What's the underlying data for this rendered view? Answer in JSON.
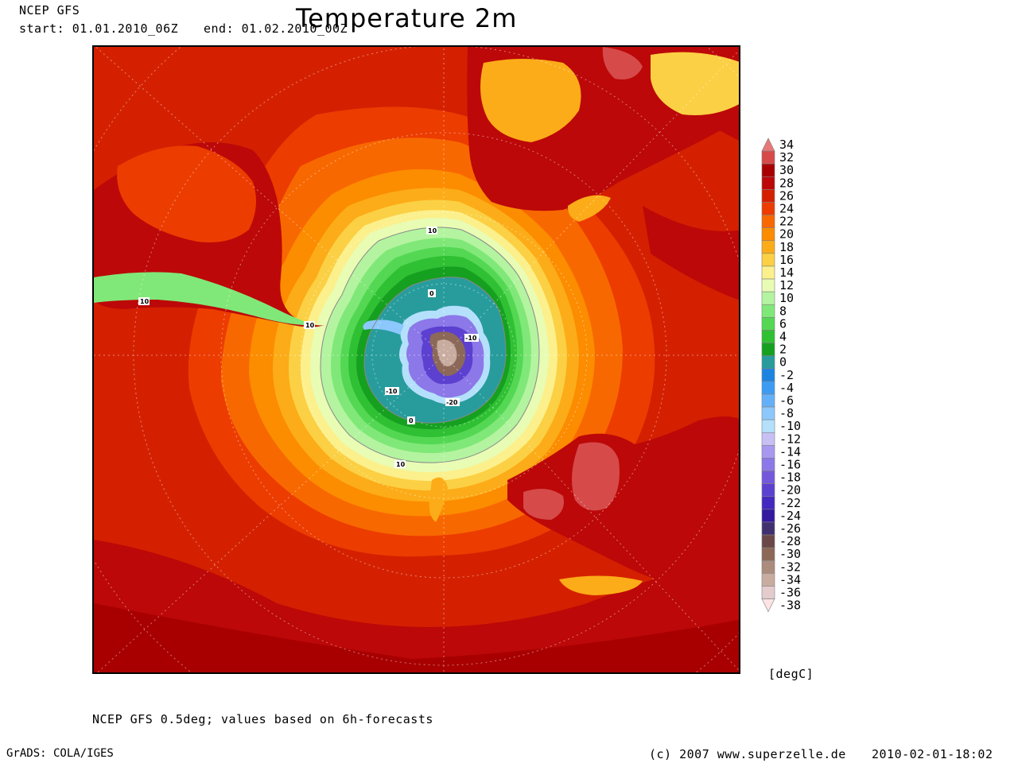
{
  "header": {
    "model": "NCEP GFS",
    "start": "start: 01.01.2010_06Z",
    "end": "end: 01.02.2010_00Z",
    "title": "Temperature 2m"
  },
  "map": {
    "projection": "south polar stereographic",
    "center": "Antarctica",
    "contour_labels": [
      "10",
      "0",
      "-10",
      "-10",
      "-20",
      "0",
      "10",
      "10",
      "10"
    ]
  },
  "legend": {
    "units": "[degC]",
    "levels": [
      {
        "value": "34",
        "color": "#e87878"
      },
      {
        "value": "32",
        "color": "#d64a4a"
      },
      {
        "value": "30",
        "color": "#a80000"
      },
      {
        "value": "28",
        "color": "#bc0808"
      },
      {
        "value": "26",
        "color": "#d42000"
      },
      {
        "value": "24",
        "color": "#ec3c00"
      },
      {
        "value": "22",
        "color": "#f86800"
      },
      {
        "value": "20",
        "color": "#fc8c00"
      },
      {
        "value": "18",
        "color": "#fcac18"
      },
      {
        "value": "16",
        "color": "#fcd044"
      },
      {
        "value": "14",
        "color": "#fcf08c"
      },
      {
        "value": "12",
        "color": "#e8fcb4"
      },
      {
        "value": "10",
        "color": "#b4f4a0"
      },
      {
        "value": "8",
        "color": "#80e878"
      },
      {
        "value": "6",
        "color": "#54d854"
      },
      {
        "value": "4",
        "color": "#30c034"
      },
      {
        "value": "2",
        "color": "#16a020"
      },
      {
        "value": "0",
        "color": "#289c9c"
      },
      {
        "value": "-2",
        "color": "#1c84e0"
      },
      {
        "value": "-4",
        "color": "#3c9cf4"
      },
      {
        "value": "-6",
        "color": "#64b0f8"
      },
      {
        "value": "-8",
        "color": "#8cc8fc"
      },
      {
        "value": "-10",
        "color": "#b4e0fc"
      },
      {
        "value": "-12",
        "color": "#c8c0f4"
      },
      {
        "value": "-14",
        "color": "#a898f0"
      },
      {
        "value": "-16",
        "color": "#8c78e8"
      },
      {
        "value": "-18",
        "color": "#7458dc"
      },
      {
        "value": "-20",
        "color": "#5c40d0"
      },
      {
        "value": "-22",
        "color": "#4428c0"
      },
      {
        "value": "-24",
        "color": "#3418a0"
      },
      {
        "value": "-26",
        "color": "#403070"
      },
      {
        "value": "-28",
        "color": "#6a4848"
      },
      {
        "value": "-30",
        "color": "#8c6858"
      },
      {
        "value": "-32",
        "color": "#ac8c7c"
      },
      {
        "value": "-34",
        "color": "#c8aca0"
      },
      {
        "value": "-36",
        "color": "#e4cccc"
      },
      {
        "value": "-38",
        "color": "#fce4e4"
      }
    ]
  },
  "footer": {
    "footnote": "NCEP GFS 0.5deg; values based on 6h-forecasts",
    "software": "GrADS: COLA/IGES",
    "copyright": "(c) 2007 www.superzelle.de",
    "timestamp": "2010-02-01-18:02"
  }
}
